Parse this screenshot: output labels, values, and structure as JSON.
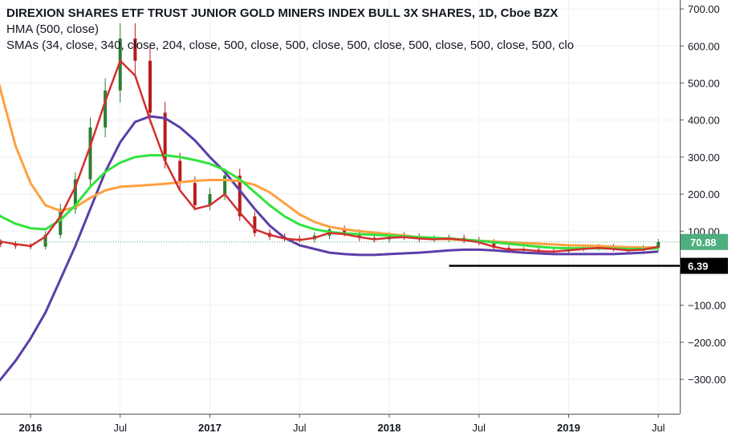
{
  "legend": {
    "title": "DIREXION SHARES ETF TRUST JUNIOR GOLD MINERS INDEX BULL 3X SHARES, 1D, Cboe BZX",
    "line2": "HMA (500, close)",
    "line3": "SMAs (34, close, 340, close, 204, close, 500, close, 500, close, 500, close, 500, close, 500, close, 500, clo"
  },
  "colors": {
    "price_up": "#2e7d32",
    "price_down": "#b71c1c",
    "hma": "#5b3ea8",
    "sma34": "#d32f2f",
    "sma204": "#33e33e",
    "sma340": "#ffa040",
    "last_price_badge": "#4caf7d",
    "support_line": "#000000"
  },
  "chart_data": {
    "type": "line",
    "x": [
      "2015-10",
      "2015-11",
      "2015-12",
      "2016-01",
      "2016-02",
      "2016-03",
      "2016-04",
      "2016-05",
      "2016-06",
      "2016-07",
      "2016-08",
      "2016-09",
      "2016-10",
      "2016-11",
      "2016-12",
      "2017-01",
      "2017-02",
      "2017-03",
      "2017-04",
      "2017-05",
      "2017-06",
      "2017-07",
      "2017-08",
      "2017-09",
      "2017-10",
      "2017-11",
      "2017-12",
      "2018-01",
      "2018-02",
      "2018-03",
      "2018-04",
      "2018-05",
      "2018-06",
      "2018-07",
      "2018-08",
      "2018-09",
      "2018-10",
      "2018-11",
      "2018-12",
      "2019-01",
      "2019-02",
      "2019-03",
      "2019-04",
      "2019-05",
      "2019-06",
      "2019-07"
    ],
    "series": [
      {
        "name": "Price",
        "values": [
          70,
          65,
          60,
          58,
          90,
          160,
          240,
          380,
          480,
          620,
          560,
          420,
          290,
          230,
          170,
          200,
          250,
          140,
          95,
          85,
          80,
          78,
          88,
          105,
          95,
          82,
          78,
          88,
          85,
          78,
          80,
          82,
          76,
          70,
          55,
          48,
          50,
          46,
          45,
          52,
          55,
          58,
          52,
          48,
          55,
          70.88
        ]
      },
      {
        "name": "HMA (500, close)",
        "values": [
          -340,
          -300,
          -250,
          -190,
          -120,
          -30,
          60,
          160,
          260,
          340,
          395,
          410,
          405,
          380,
          345,
          300,
          260,
          210,
          160,
          115,
          82,
          62,
          52,
          42,
          38,
          36,
          36,
          38,
          40,
          42,
          45,
          48,
          50,
          50,
          48,
          45,
          42,
          40,
          38,
          38,
          38,
          38,
          38,
          40,
          42,
          45
        ]
      },
      {
        "name": "SMA 34",
        "values": [
          80,
          72,
          65,
          60,
          85,
          140,
          220,
          330,
          450,
          560,
          520,
          400,
          290,
          210,
          160,
          170,
          200,
          150,
          105,
          90,
          80,
          76,
          82,
          95,
          92,
          84,
          78,
          82,
          84,
          80,
          78,
          80,
          76,
          70,
          58,
          50,
          50,
          46,
          45,
          48,
          52,
          55,
          52,
          48,
          50,
          58
        ]
      },
      {
        "name": "SMA 204",
        "values": [
          170,
          140,
          120,
          108,
          105,
          130,
          170,
          220,
          260,
          285,
          300,
          305,
          305,
          300,
          292,
          282,
          265,
          240,
          205,
          170,
          140,
          118,
          105,
          98,
          94,
          92,
          90,
          88,
          86,
          84,
          82,
          80,
          77,
          74,
          70,
          66,
          62,
          58,
          55,
          54,
          54,
          54,
          53,
          52,
          52,
          54
        ]
      },
      {
        "name": "SMA 340",
        "values": [
          640,
          480,
          330,
          230,
          170,
          155,
          165,
          190,
          210,
          220,
          222,
          225,
          228,
          232,
          236,
          238,
          238,
          235,
          225,
          205,
          175,
          145,
          125,
          112,
          105,
          100,
          96,
          92,
          88,
          84,
          80,
          78,
          76,
          74,
          72,
          70,
          68,
          66,
          64,
          62,
          61,
          60,
          58,
          57,
          56,
          56
        ]
      }
    ],
    "ylim": [
      -400,
      720
    ],
    "y_ticks": [
      "−300.00",
      "−200.00",
      "−100.00",
      "0.00",
      "100.00",
      "200.00",
      "300.00",
      "400.00",
      "500.00",
      "600.00",
      "700.00"
    ],
    "x_ticks": [
      {
        "label": "2016",
        "x": "2016-01"
      },
      {
        "label": "Jul",
        "x": "2016-07"
      },
      {
        "label": "2017",
        "x": "2017-01"
      },
      {
        "label": "Jul",
        "x": "2017-07"
      },
      {
        "label": "2018",
        "x": "2018-01"
      },
      {
        "label": "Jul",
        "x": "2018-07"
      },
      {
        "label": "2019",
        "x": "2019-01"
      },
      {
        "label": "Jul",
        "x": "2019-07"
      }
    ],
    "last_price": "70.88",
    "support_level": "6.39",
    "support_from": "2018-05",
    "grid": true
  }
}
